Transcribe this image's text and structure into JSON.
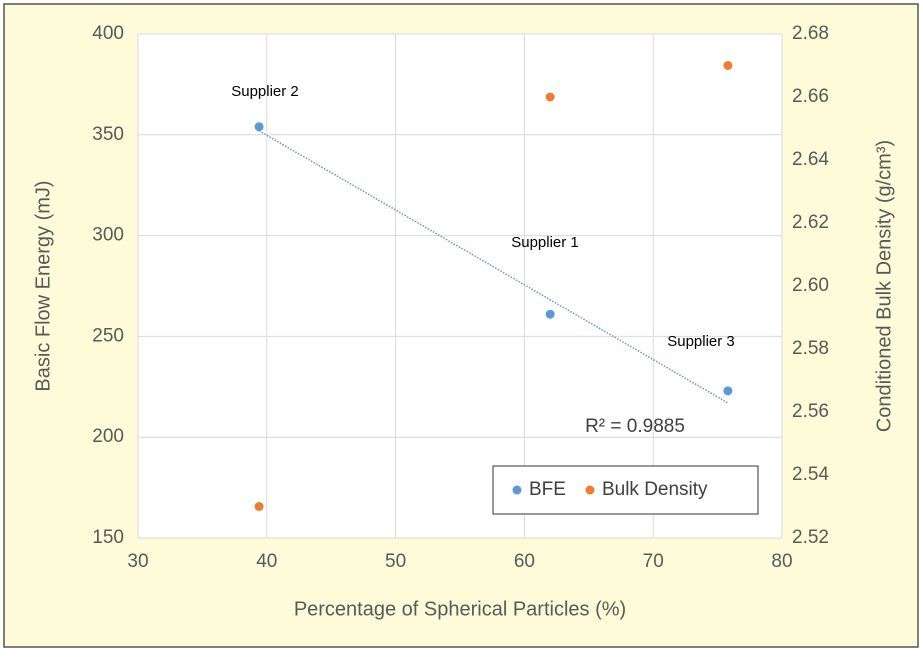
{
  "chart_data": {
    "type": "scatter",
    "xlabel": "Percentage of Spherical Particles (%)",
    "ylabel": "Basic Flow Energy (mJ)",
    "y2label": "Conditioned Bulk Density (g/cm³)",
    "xlim": [
      30,
      80
    ],
    "xticks": [
      30,
      40,
      50,
      60,
      70,
      80
    ],
    "ylim": [
      150,
      400
    ],
    "yticks": [
      150,
      200,
      250,
      300,
      350,
      400
    ],
    "y2lim": [
      2.52,
      2.68
    ],
    "y2ticks": [
      2.52,
      2.54,
      2.56,
      2.58,
      {
        "value": 2.6,
        "label": "2.60"
      },
      2.62,
      2.64,
      2.66,
      2.68
    ],
    "grid": true,
    "legend": "lower right",
    "series": [
      {
        "name": "BFE",
        "color": "#5b9bd5",
        "x": [
          39.4,
          62,
          75.8
        ],
        "values": [
          354,
          261,
          223
        ]
      },
      {
        "name": "Bulk Density",
        "color": "#ed7d31",
        "axis": "y2",
        "x": [
          39.4,
          62,
          75.8
        ],
        "values": [
          2.53,
          2.66,
          2.67
        ]
      }
    ],
    "trendline": {
      "color": "#5b9bd5",
      "x": [
        39.4,
        75.8
      ],
      "values": [
        352,
        217
      ]
    },
    "annotations": [
      "Supplier 2",
      "Supplier 1",
      "Supplier 3",
      "R² = 0.9885"
    ]
  }
}
